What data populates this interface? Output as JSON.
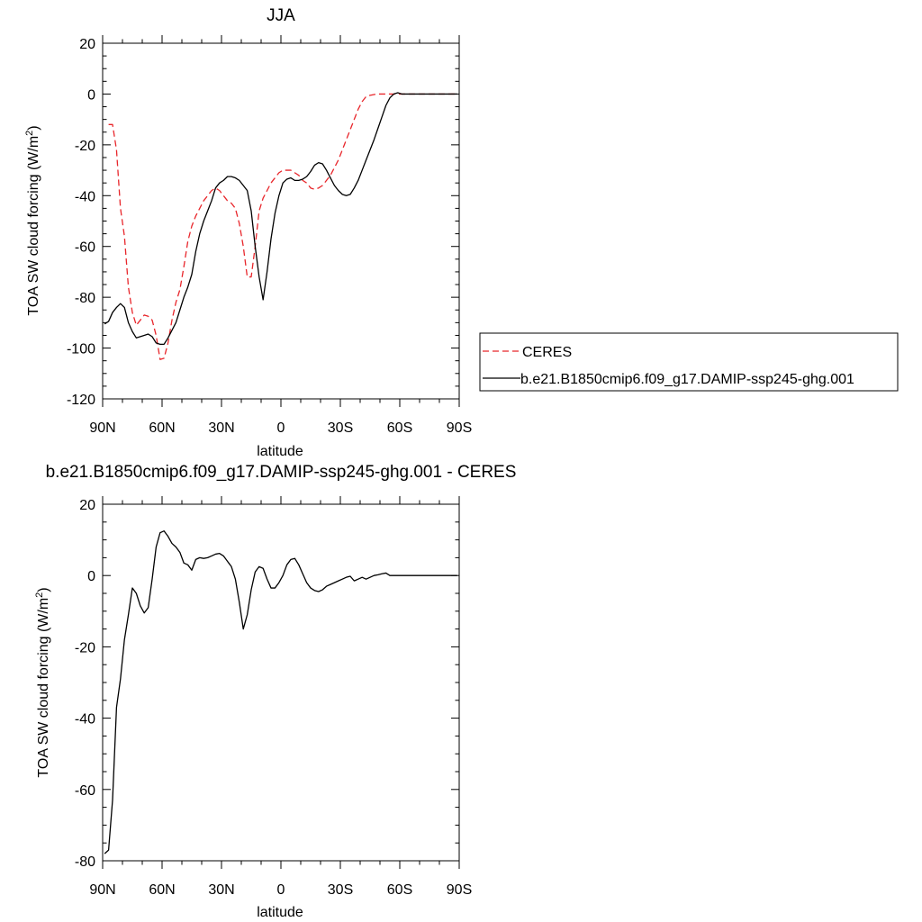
{
  "chart_data": [
    {
      "type": "line",
      "title": "JJA",
      "xlabel": "latitude",
      "ylabel": "TOA SW cloud forcing (W/m",
      "ylabel_sup": "2",
      "ylabel_end": ")",
      "xlim": [
        90,
        -90
      ],
      "ylim": [
        -120,
        20
      ],
      "xticks": [
        90,
        60,
        30,
        0,
        -30,
        -60,
        -90
      ],
      "xtick_labels": [
        "90N",
        "60N",
        "30N",
        "0",
        "30S",
        "60S",
        "90S"
      ],
      "yticks": [
        -120,
        -100,
        -80,
        -60,
        -40,
        -20,
        0,
        20
      ],
      "ytick_labels": [
        "-120",
        "-100",
        "-80",
        "-60",
        "-40",
        "-20",
        "0",
        "20"
      ],
      "legend_position": "right",
      "series": [
        {
          "name": "CERES",
          "color": "#e8262b",
          "style": "dashed",
          "x": [
            87,
            85,
            83,
            81,
            79,
            77,
            75,
            73,
            71,
            69,
            67,
            65,
            63,
            61,
            59,
            57,
            55,
            53,
            51,
            49,
            47,
            45,
            43,
            41,
            39,
            37,
            35,
            33,
            31,
            29,
            27,
            25,
            23,
            21,
            19,
            17,
            15,
            13,
            11,
            9,
            7,
            5,
            3,
            1,
            -1,
            -3,
            -5,
            -7,
            -9,
            -11,
            -13,
            -15,
            -17,
            -19,
            -21,
            -23,
            -25,
            -27,
            -29,
            -31,
            -33,
            -35,
            -37,
            -39,
            -41,
            -43,
            -45,
            -47,
            -49,
            -51,
            -53,
            -55,
            -57,
            -59,
            -61,
            -63,
            -65,
            -67,
            -69,
            -71,
            -73,
            -75,
            -77,
            -79,
            -81,
            -83,
            -85,
            -87,
            -89
          ],
          "values": [
            -12,
            -12,
            -22,
            -45,
            -56,
            -76,
            -86,
            -91,
            -89,
            -87,
            -87.5,
            -89,
            -95,
            -104.5,
            -104,
            -98,
            -89,
            -82,
            -77,
            -68,
            -58,
            -52,
            -48,
            -45,
            -42,
            -40,
            -38,
            -37,
            -38,
            -40,
            -42,
            -43,
            -45,
            -51,
            -60,
            -72,
            -72,
            -60,
            -46,
            -41,
            -38,
            -35,
            -33,
            -31,
            -30,
            -30,
            -30,
            -31,
            -32,
            -34,
            -35,
            -37,
            -37.5,
            -37,
            -36,
            -34,
            -32,
            -29,
            -26,
            -22,
            -18,
            -14,
            -10,
            -6,
            -3,
            -1,
            -0.5,
            -0.2,
            0,
            0,
            0,
            0,
            0,
            0,
            0,
            0,
            0,
            0,
            0,
            0,
            0,
            0,
            0,
            0,
            0,
            0,
            0,
            0,
            0
          ]
        },
        {
          "name": "b.e21.B1850cmip6.f09_g17.DAMIP-ssp245-ghg.001",
          "color": "#000000",
          "style": "solid",
          "x": [
            89,
            87,
            85,
            83,
            81,
            79,
            77,
            75,
            73,
            71,
            69,
            67,
            65,
            63,
            61,
            59,
            57,
            55,
            53,
            51,
            49,
            47,
            45,
            43,
            41,
            39,
            37,
            35,
            33,
            31,
            29,
            27,
            25,
            23,
            21,
            19,
            17,
            15,
            13,
            11,
            9,
            7,
            5,
            3,
            1,
            -1,
            -3,
            -5,
            -7,
            -9,
            -11,
            -13,
            -15,
            -17,
            -19,
            -21,
            -23,
            -25,
            -27,
            -29,
            -31,
            -33,
            -35,
            -37,
            -39,
            -41,
            -43,
            -45,
            -47,
            -49,
            -51,
            -53,
            -55,
            -57,
            -59,
            -61,
            -63,
            -65,
            -67,
            -69,
            -71,
            -73,
            -75,
            -77,
            -79,
            -81,
            -83,
            -85,
            -87,
            -89
          ],
          "values": [
            -90.5,
            -89.5,
            -86,
            -84,
            -82.5,
            -84,
            -90,
            -93.5,
            -96,
            -95.5,
            -95,
            -94.5,
            -95.5,
            -98,
            -98.5,
            -98.5,
            -96,
            -93,
            -90,
            -85,
            -80,
            -76,
            -71,
            -62,
            -55,
            -50,
            -46,
            -42,
            -37,
            -35,
            -34,
            -32.5,
            -32.5,
            -33,
            -34,
            -36,
            -38,
            -46,
            -60,
            -72,
            -81,
            -70,
            -57,
            -47,
            -40,
            -35,
            -33.5,
            -33,
            -34,
            -34,
            -33.5,
            -32.5,
            -30.5,
            -28,
            -27,
            -27.5,
            -30,
            -33,
            -36,
            -38,
            -39.5,
            -40,
            -39.5,
            -37,
            -34,
            -30,
            -26,
            -22,
            -18,
            -13.5,
            -9,
            -4.5,
            -1.5,
            0,
            0.5,
            0,
            0,
            0,
            0,
            0,
            0,
            0,
            0,
            0,
            0,
            0,
            0,
            0,
            0,
            0
          ]
        }
      ]
    },
    {
      "type": "line",
      "title": "b.e21.B1850cmip6.f09_g17.DAMIP-ssp245-ghg.001 - CERES",
      "xlabel": "latitude",
      "ylabel": "TOA SW cloud forcing (W/m",
      "ylabel_sup": "2",
      "ylabel_end": ")",
      "xlim": [
        90,
        -90
      ],
      "ylim": [
        -80,
        20
      ],
      "xticks": [
        90,
        60,
        30,
        0,
        -30,
        -60,
        -90
      ],
      "xtick_labels": [
        "90N",
        "60N",
        "30N",
        "0",
        "30S",
        "60S",
        "90S"
      ],
      "yticks": [
        -80,
        -60,
        -40,
        -20,
        0,
        20
      ],
      "ytick_labels": [
        "-80",
        "-60",
        "-40",
        "-20",
        "0",
        "20"
      ],
      "series": [
        {
          "color": "#000000",
          "style": "solid",
          "x": [
            89,
            87,
            85,
            83,
            81,
            79,
            77,
            75,
            73,
            71,
            69,
            67,
            65,
            63,
            61,
            59,
            57,
            55,
            53,
            51,
            49,
            47,
            45,
            43,
            41,
            39,
            37,
            35,
            33,
            31,
            29,
            27,
            25,
            23,
            21,
            19,
            17,
            15,
            13,
            11,
            9,
            7,
            5,
            3,
            1,
            -1,
            -3,
            -5,
            -7,
            -9,
            -11,
            -13,
            -15,
            -17,
            -19,
            -21,
            -23,
            -25,
            -27,
            -29,
            -31,
            -33,
            -35,
            -37,
            -39,
            -41,
            -43,
            -45,
            -47,
            -49,
            -51,
            -53,
            -55,
            -57,
            -59,
            -61,
            -63,
            -65,
            -67,
            -69,
            -71,
            -73,
            -75,
            -77,
            -79,
            -81,
            -83,
            -85,
            -87,
            -89
          ],
          "values": [
            -78,
            -77,
            -63,
            -37,
            -29,
            -18,
            -11,
            -3.5,
            -5,
            -8.5,
            -10.5,
            -9,
            -1,
            8,
            12,
            12.5,
            11,
            9,
            8,
            6.5,
            3.5,
            3,
            1.5,
            4.5,
            5,
            4.8,
            5,
            5.5,
            6,
            6.2,
            5.5,
            4,
            2.5,
            -1,
            -7.5,
            -15,
            -11,
            -4,
            1,
            2.5,
            2,
            -1,
            -3.5,
            -3.5,
            -2,
            0,
            3,
            4.5,
            4.8,
            3,
            0.5,
            -2,
            -3.5,
            -4.2,
            -4.5,
            -4,
            -3,
            -2.5,
            -2,
            -1.5,
            -1,
            -0.5,
            -0.2,
            -1.5,
            -1,
            -0.5,
            -1,
            -0.5,
            0,
            0.2,
            0.5,
            0.7,
            0,
            0,
            0,
            0,
            0,
            0,
            0,
            0,
            0,
            0,
            0,
            0,
            0,
            0,
            0,
            0,
            0,
            0
          ]
        }
      ]
    }
  ]
}
